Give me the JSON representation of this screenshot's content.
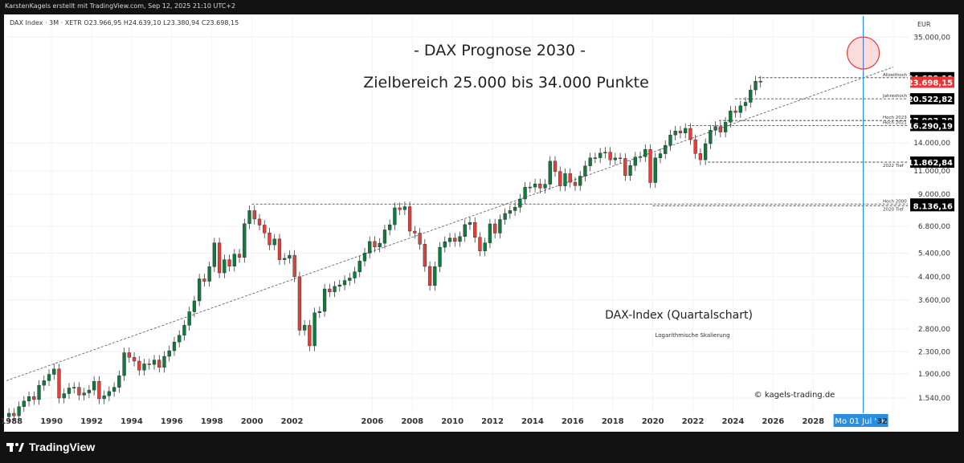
{
  "header": {
    "attribution": "KarstenKagels erstellt mit TradingView.com, Sep 12, 2025 21:10 UTC+2"
  },
  "legend_line": "DAX Index · 3M · XETR  O23.966,95  H24.639,10  L23.380,94  C23.698,15",
  "footer": {
    "brand": "TradingView"
  },
  "colors": {
    "up": "#0f7a3c",
    "down": "#e0403a",
    "trend": "#555555",
    "vline": "#2a8fe0",
    "label_bg": "#000000",
    "last_bg": "#e83535"
  },
  "chart_data": {
    "type": "candlestick",
    "scale": "log",
    "currency": "EUR",
    "title": "- DAX Prognose 2030 -",
    "subtitle": "Zielbereich 25.000 bis 34.000 Punkte",
    "annotation_main": "DAX-Index (Quartalschart)",
    "annotation_sub": "Logarithmische Skalierung",
    "watermark": "© kagels-trading.de",
    "y_range": [
      1350,
      42000
    ],
    "x_range": [
      1987.75,
      2032.8
    ],
    "y_ticks": [
      {
        "value": 35000,
        "label": "35.000,00"
      },
      {
        "value": 14000,
        "label": "14.000,00"
      },
      {
        "value": 11000,
        "label": "11.000,00"
      },
      {
        "value": 9000,
        "label": "9.000,00"
      },
      {
        "value": 6800,
        "label": "6.800,00"
      },
      {
        "value": 5400,
        "label": "5.400,00"
      },
      {
        "value": 4400,
        "label": "4.400,00"
      },
      {
        "value": 3600,
        "label": "3.600,00"
      },
      {
        "value": 2800,
        "label": "2.800,00"
      },
      {
        "value": 2300,
        "label": "2.300,00"
      },
      {
        "value": 1900,
        "label": "1.900,00"
      },
      {
        "value": 1540,
        "label": "1.540,00"
      }
    ],
    "x_ticks": [
      {
        "value": 1988,
        "label": "1988"
      },
      {
        "value": 1990,
        "label": "1990"
      },
      {
        "value": 1992,
        "label": "1992"
      },
      {
        "value": 1994,
        "label": "1994"
      },
      {
        "value": 1996,
        "label": "1996"
      },
      {
        "value": 1998,
        "label": "1998"
      },
      {
        "value": 2000,
        "label": "2000"
      },
      {
        "value": 2002,
        "label": "2002"
      },
      {
        "value": 2006,
        "label": "2006"
      },
      {
        "value": 2008,
        "label": "2008"
      },
      {
        "value": 2010,
        "label": "2010"
      },
      {
        "value": 2012,
        "label": "2012"
      },
      {
        "value": 2014,
        "label": "2014"
      },
      {
        "value": 2016,
        "label": "2016"
      },
      {
        "value": 2018,
        "label": "2018"
      },
      {
        "value": 2020,
        "label": "2020"
      },
      {
        "value": 2022,
        "label": "2022"
      },
      {
        "value": 2024,
        "label": "2024"
      },
      {
        "value": 2026,
        "label": "2026"
      },
      {
        "value": 2028,
        "label": "2028"
      },
      {
        "value": "2032",
        "label": "32"
      }
    ],
    "price_labels": [
      {
        "value": 24639.1,
        "label": "24.639,10",
        "style": "dark"
      },
      {
        "value": 23698.15,
        "label": "23.698,15",
        "style": "last"
      },
      {
        "value": 20522.82,
        "label": "20.522,82",
        "style": "dark"
      },
      {
        "value": 17003.28,
        "label": "17.003,28",
        "style": "dark"
      },
      {
        "value": 16290.19,
        "label": "16.290,19",
        "style": "dark"
      },
      {
        "value": 11862.84,
        "label": "11.862,84",
        "style": "dark"
      },
      {
        "value": 8255.65,
        "label": "8.255,65",
        "style": "dark"
      },
      {
        "value": 8136.16,
        "label": "8.136,16",
        "style": "dark"
      }
    ],
    "levels": [
      {
        "name": "Allzeithoch 2025",
        "value": 24639.1,
        "from": 2025.25
      },
      {
        "name": "Jahreshoch 2024",
        "value": 20522.82,
        "from": 2024.1
      },
      {
        "name": "Hoch 2023",
        "value": 17003.28,
        "from": 2023.3
      },
      {
        "name": "Hoch 2021",
        "value": 16290.19,
        "from": 2021.75
      },
      {
        "name": "2022 Tief",
        "value": 11862.84,
        "from": 2022.75
      },
      {
        "name": "Hoch 2000",
        "value": 8255.65,
        "from": 2000.0
      },
      {
        "name": "2020 Tief",
        "value": 8136.16,
        "from": 2020.0
      }
    ],
    "trendline": {
      "points": [
        [
          1987.75,
          1790
        ],
        [
          2032.0,
          27000
        ]
      ]
    },
    "vertical_marker": {
      "x": 2030.5,
      "label": "Mo 01 Jul '30"
    },
    "target_circle": {
      "x": 2030.5,
      "value": 30500
    },
    "quarterly_close": [
      1350,
      1320,
      1430,
      1500,
      1560,
      1520,
      1720,
      1790,
      1890,
      1980,
      1540,
      1600,
      1680,
      1690,
      1580,
      1610,
      1650,
      1780,
      1530,
      1570,
      1630,
      1690,
      1870,
      2280,
      2190,
      2120,
      1960,
      2070,
      2060,
      2140,
      2010,
      2210,
      2320,
      2500,
      2650,
      2890,
      3250,
      3570,
      4320,
      4230,
      4800,
      5900,
      4550,
      5100,
      4820,
      5350,
      5200,
      6960,
      7800,
      7250,
      6880,
      6430,
      5800,
      6100,
      5100,
      5160,
      5300,
      4400,
      2770,
      2890,
      2420,
      3220,
      3260,
      3960,
      3860,
      4050,
      4100,
      4260,
      4350,
      4590,
      5040,
      5400,
      5970,
      5690,
      5880,
      6600,
      6900,
      7990,
      7860,
      8070,
      6530,
      6420,
      5830,
      4810,
      4080,
      4800,
      5680,
      5960,
      6150,
      5970,
      6230,
      6910,
      7040,
      6190,
      5500,
      5900,
      6950,
      6420,
      7220,
      7610,
      7800,
      8030,
      8620,
      9550,
      9560,
      9830,
      9480,
      9800,
      11960,
      10940,
      9660,
      10740,
      9970,
      9690,
      10510,
      11480,
      12310,
      12320,
      12830,
      12920,
      12100,
      12300,
      12250,
      10560,
      11520,
      12400,
      12430,
      13250,
      9940,
      12310,
      12760,
      13720,
      15010,
      15530,
      15260,
      15890,
      14410,
      12780,
      12110,
      13920,
      15630,
      16150,
      15390,
      16750,
      18490,
      18230,
      19320,
      19910,
      22160,
      23910,
      23700
    ]
  }
}
